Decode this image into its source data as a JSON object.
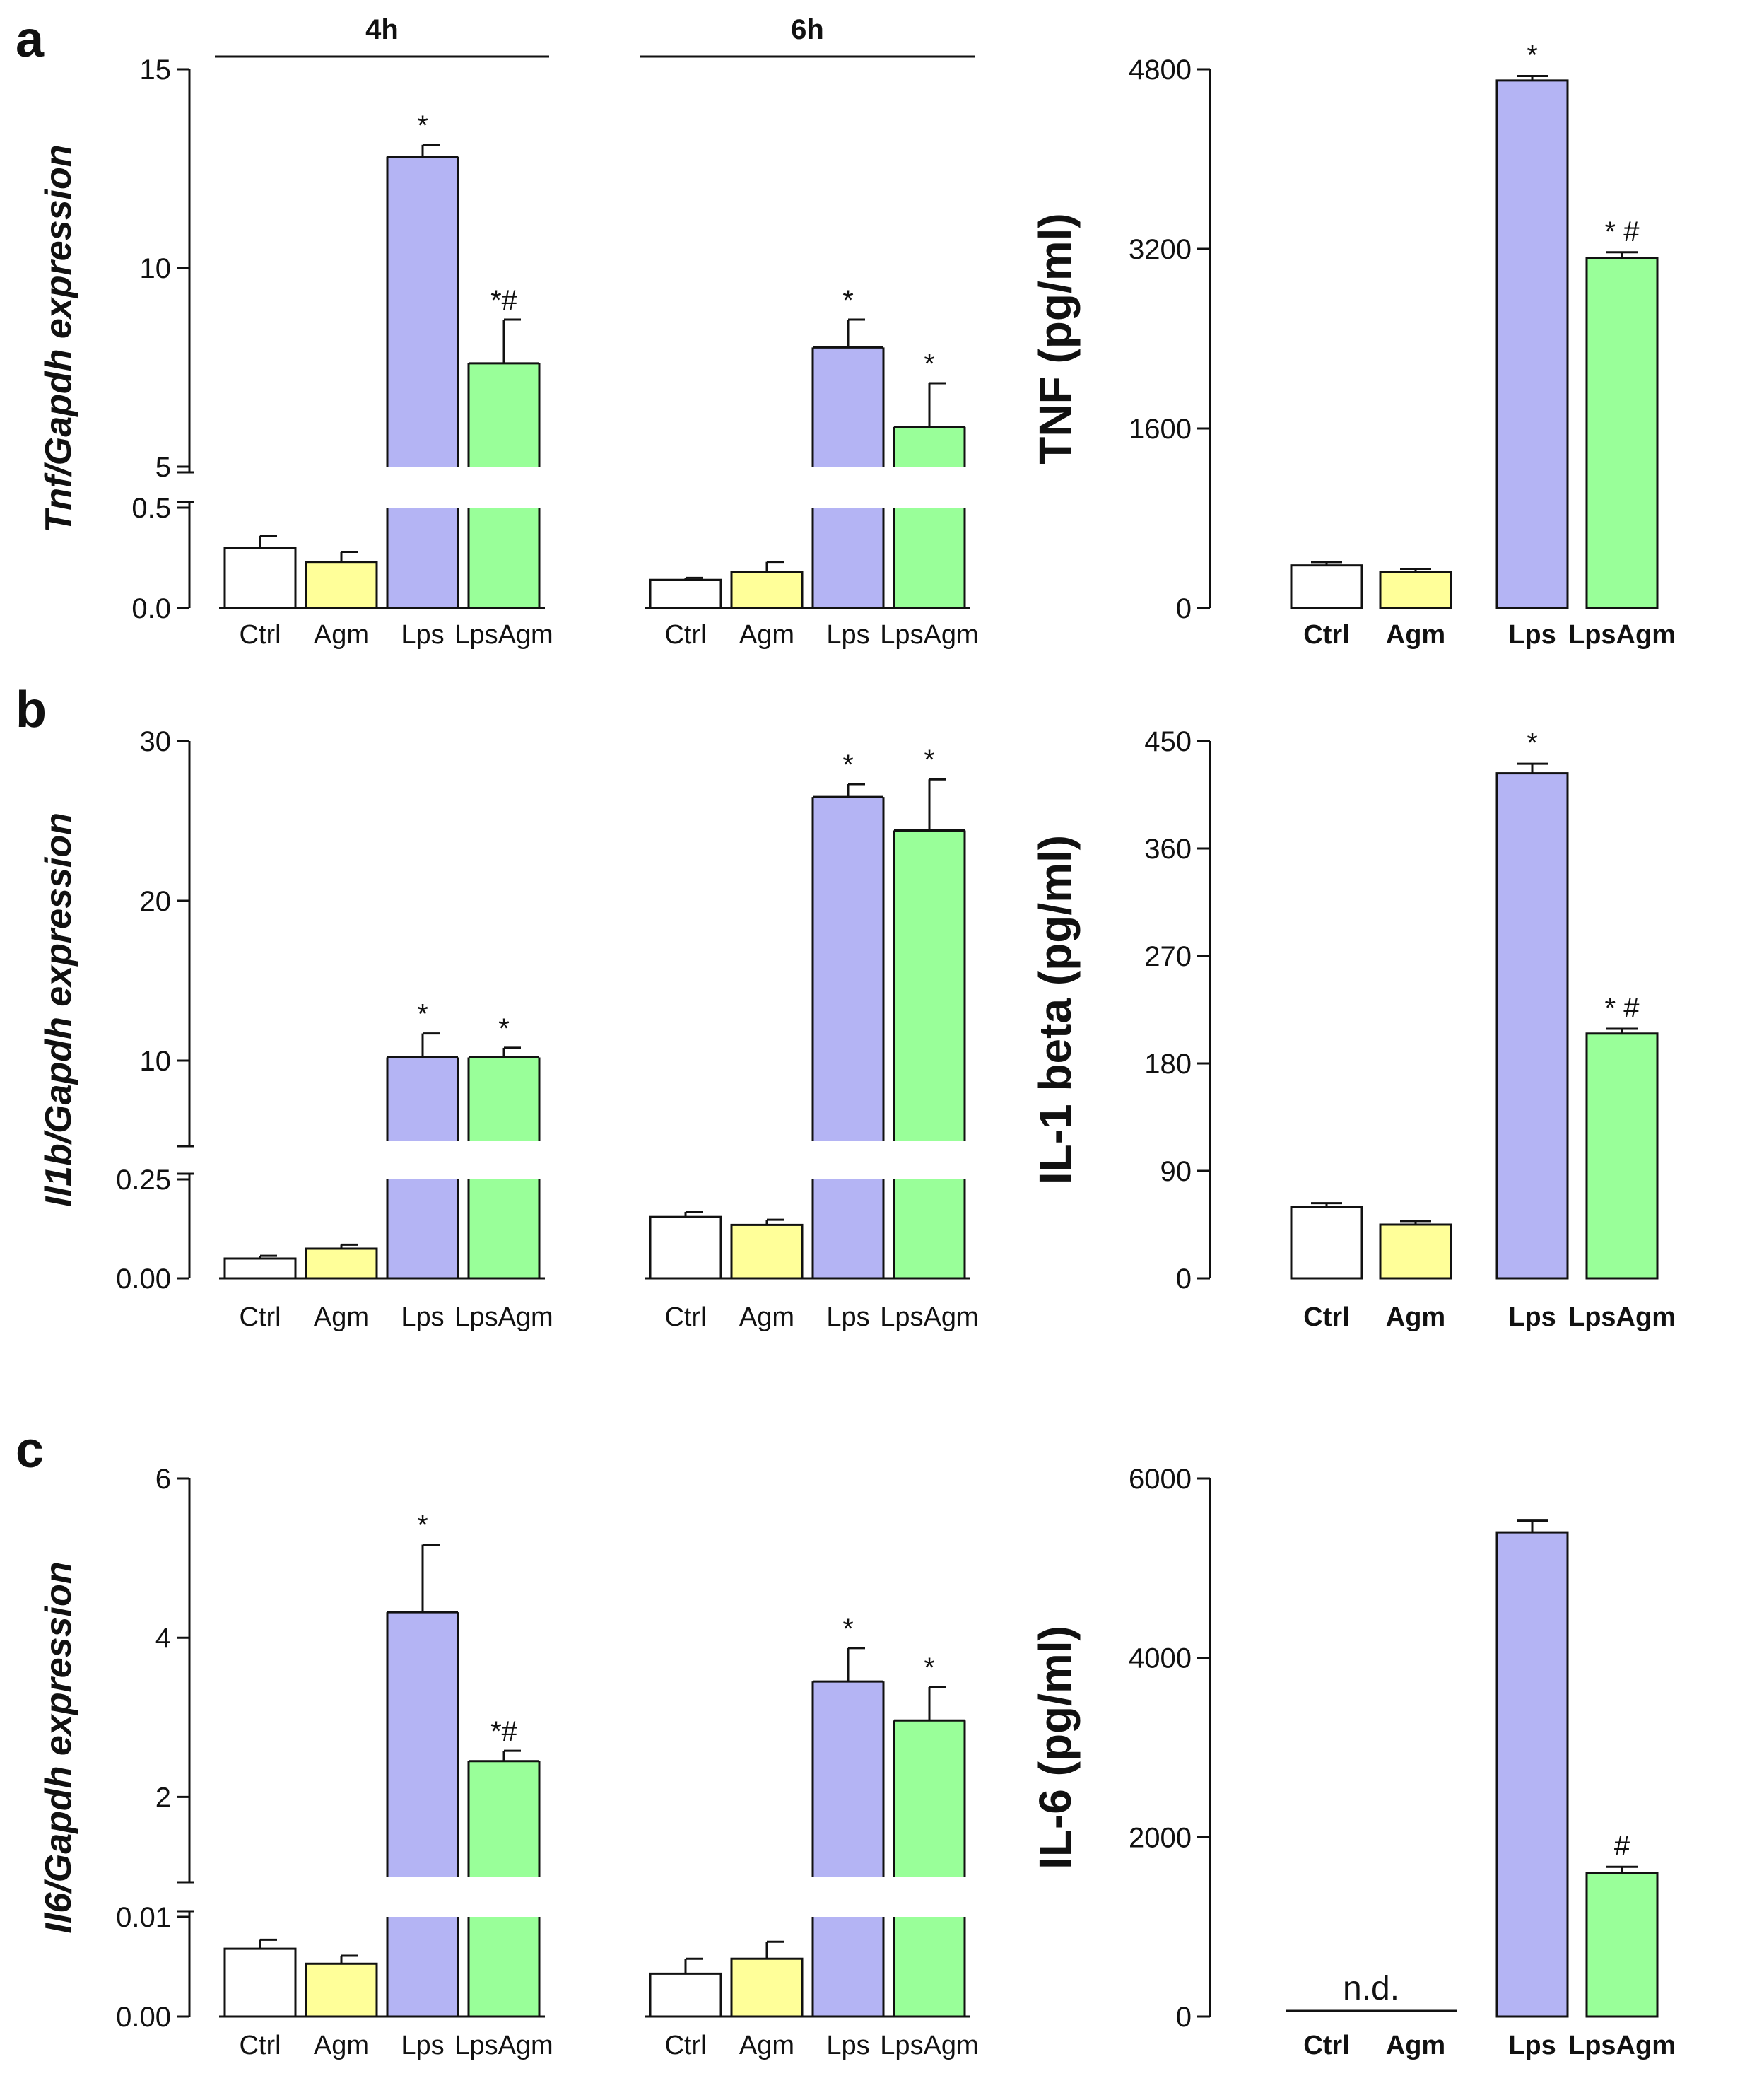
{
  "colors": {
    "Ctrl": "#ffffff",
    "Agm": "#ffff99",
    "Lps": "#b4b4f4",
    "LpsAgm": "#99ff99",
    "stroke": "#111111"
  },
  "chart_data": [
    {
      "id": "a_mrna",
      "panel": "a",
      "type": "bar",
      "ylabel": "Tnf/Gapdh expression",
      "ylabel_parts": [
        {
          "t": "Tnf",
          "i": true
        },
        {
          "t": "/",
          "i": false
        },
        {
          "t": "Gapdh",
          "i": true
        },
        {
          "t": " expression",
          "i": false
        }
      ],
      "lower_ylim": [
        0,
        0.5
      ],
      "upper_ylim": [
        5,
        15
      ],
      "lower_ticks": [
        "0.0",
        "0.5"
      ],
      "upper_ticks": [
        "5",
        "10",
        "15"
      ],
      "groups": [
        {
          "label": "4h",
          "categories": [
            "Ctrl",
            "Agm",
            "Lps",
            "LpsAgm"
          ],
          "values": [
            0.3,
            0.23,
            12.8,
            7.6
          ],
          "errors": [
            0.06,
            0.05,
            0.3,
            1.1
          ],
          "annotations": [
            "",
            "",
            "*",
            "*#"
          ]
        },
        {
          "label": "6h",
          "categories": [
            "Ctrl",
            "Agm",
            "Lps",
            "LpsAgm"
          ],
          "values": [
            0.14,
            0.18,
            8.0,
            6.0
          ],
          "errors": [
            0.01,
            0.05,
            0.7,
            1.1
          ],
          "annotations": [
            "",
            "",
            "*",
            "*"
          ]
        }
      ]
    },
    {
      "id": "a_protein",
      "panel": "a",
      "type": "bar",
      "ylabel": "TNF (pg/ml)",
      "ylim": [
        0,
        4800
      ],
      "ticks": [
        "0",
        "1600",
        "3200",
        "4800"
      ],
      "categories": [
        "Ctrl",
        "Agm",
        "Lps",
        "LpsAgm"
      ],
      "values": [
        380,
        320,
        4700,
        3120
      ],
      "errors": [
        30,
        30,
        40,
        50
      ],
      "annotations": [
        "",
        "",
        "*",
        "* #"
      ]
    },
    {
      "id": "b_mrna",
      "panel": "b",
      "type": "bar",
      "ylabel": "Il1b/Gapdh expression",
      "ylabel_parts": [
        {
          "t": "Il1b",
          "i": true
        },
        {
          "t": "/",
          "i": false
        },
        {
          "t": "Gapdh",
          "i": true
        },
        {
          "t": " expression",
          "i": false
        }
      ],
      "lower_ylim": [
        0,
        0.25
      ],
      "upper_ylim": [
        5,
        30
      ],
      "lower_ticks": [
        "0.00",
        "0.25"
      ],
      "upper_ticks": [
        "10",
        "20",
        "30"
      ],
      "groups": [
        {
          "label": "4h",
          "categories": [
            "Ctrl",
            "Agm",
            "Lps",
            "LpsAgm"
          ],
          "values": [
            0.05,
            0.075,
            10.2,
            10.2
          ],
          "errors": [
            0.007,
            0.01,
            1.5,
            0.6
          ],
          "annotations": [
            "",
            "",
            "*",
            "*"
          ]
        },
        {
          "label": "6h",
          "categories": [
            "Ctrl",
            "Agm",
            "Lps",
            "LpsAgm"
          ],
          "values": [
            0.155,
            0.135,
            26.5,
            24.4
          ],
          "errors": [
            0.013,
            0.013,
            0.8,
            3.2
          ],
          "annotations": [
            "",
            "",
            "*",
            "*"
          ]
        }
      ]
    },
    {
      "id": "b_protein",
      "panel": "b",
      "type": "bar",
      "ylabel": "IL-1 beta (pg/ml)",
      "ylim": [
        0,
        450
      ],
      "ticks": [
        "0",
        "90",
        "180",
        "270",
        "360",
        "450"
      ],
      "categories": [
        "Ctrl",
        "Agm",
        "Lps",
        "LpsAgm"
      ],
      "values": [
        60,
        45,
        423,
        205
      ],
      "errors": [
        3,
        3,
        8,
        4
      ],
      "annotations": [
        "",
        "",
        "*",
        "* #"
      ]
    },
    {
      "id": "c_mrna",
      "panel": "c",
      "type": "bar",
      "ylabel": "Il6/Gapdh expression",
      "ylabel_parts": [
        {
          "t": "Il6",
          "i": true
        },
        {
          "t": "/",
          "i": false
        },
        {
          "t": "Gapdh",
          "i": true
        },
        {
          "t": " expression",
          "i": false
        }
      ],
      "lower_ylim": [
        0,
        0.01
      ],
      "upper_ylim": [
        1,
        6
      ],
      "lower_ticks": [
        "0.00",
        "0.01"
      ],
      "upper_ticks": [
        "2",
        "4",
        "6"
      ],
      "groups": [
        {
          "label": "4h",
          "categories": [
            "Ctrl",
            "Agm",
            "Lps",
            "LpsAgm"
          ],
          "values": [
            0.0068,
            0.0053,
            4.32,
            2.45
          ],
          "errors": [
            0.0009,
            0.0008,
            0.85,
            0.13
          ],
          "annotations": [
            "",
            "",
            "*",
            "*#"
          ]
        },
        {
          "label": "6h",
          "categories": [
            "Ctrl",
            "Agm",
            "Lps",
            "LpsAgm"
          ],
          "values": [
            0.0043,
            0.0058,
            3.45,
            2.96
          ],
          "errors": [
            0.0015,
            0.0017,
            0.42,
            0.42
          ],
          "annotations": [
            "",
            "",
            "*",
            "*"
          ]
        }
      ]
    },
    {
      "id": "c_protein",
      "panel": "c",
      "type": "bar",
      "ylabel": "IL-6 (pg/ml)",
      "ylim": [
        0,
        6000
      ],
      "ticks": [
        "0",
        "2000",
        "4000",
        "6000"
      ],
      "categories": [
        "Ctrl",
        "Agm",
        "Lps",
        "LpsAgm"
      ],
      "values": [
        null,
        null,
        5400,
        1600
      ],
      "errors": [
        0,
        0,
        130,
        70
      ],
      "annotations": [
        "",
        "",
        "",
        "#"
      ],
      "nd_label": "n.d."
    }
  ]
}
